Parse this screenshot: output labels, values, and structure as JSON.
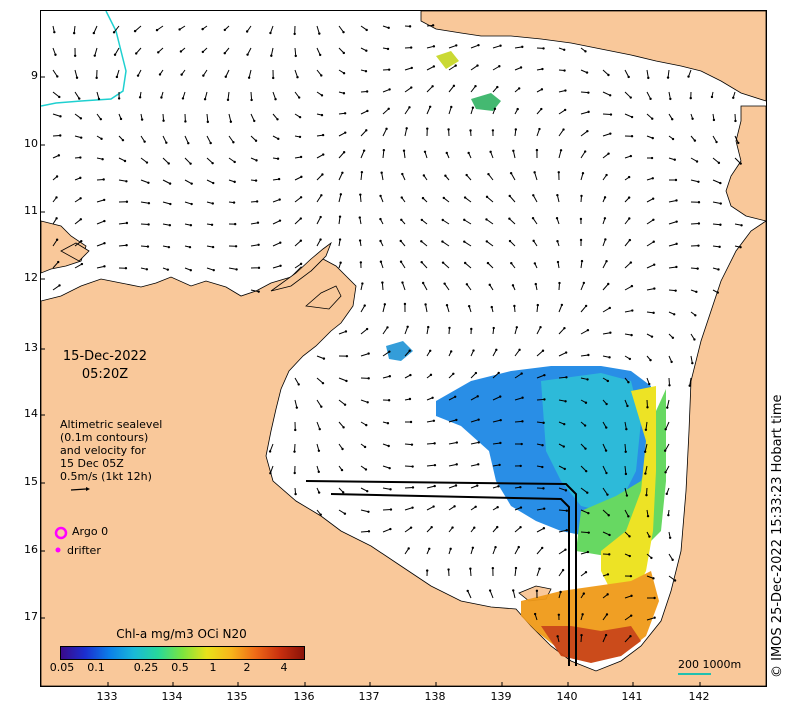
{
  "map": {
    "lat_ticks": [
      "9",
      "10",
      "11",
      "12",
      "13",
      "14",
      "15",
      "16",
      "17"
    ],
    "lon_ticks": [
      "133",
      "134",
      "135",
      "136",
      "137",
      "138",
      "139",
      "140",
      "141",
      "142"
    ]
  },
  "timestamp": {
    "date": "15-Dec-2022",
    "time": "05:20Z"
  },
  "legend": {
    "line1": "Altimetric sealevel",
    "line2": "(0.1m contours)",
    "line3": "and velocity for",
    "line4": "15 Dec 05Z",
    "line5": "0.5m/s (1kt 12h)",
    "argo_label": "Argo 0",
    "drifter_label": "drifter"
  },
  "colorbar": {
    "title": "Chl-a mg/m3 OCi N20",
    "ticks": [
      "0.05",
      "0.1",
      "0.25",
      "0.5",
      "1",
      "2",
      "4"
    ]
  },
  "scale": {
    "label": "200  1000m"
  },
  "credit": "© IMOS 25-Dec-2022 15:33:23 Hobart time",
  "colors": {
    "land": "#f9c89a",
    "ocean": "#ffffff",
    "argo": "#ff00ff",
    "scale_line": "#1fc0b0"
  }
}
